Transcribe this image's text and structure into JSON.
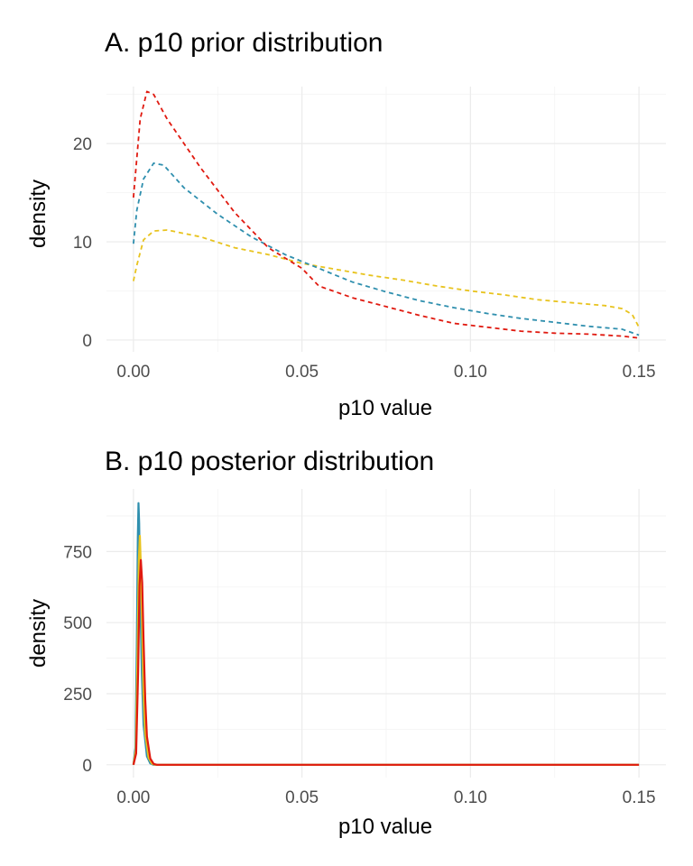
{
  "chart_data": [
    {
      "type": "line",
      "title": "A. p10 prior distribution",
      "xlabel": "p10 value",
      "ylabel": "density",
      "xlim": [
        -0.008,
        0.158
      ],
      "ylim": [
        -1.2,
        25.8
      ],
      "x_ticks": [
        0.0,
        0.05,
        0.1,
        0.15
      ],
      "x_tick_labels": [
        "0.00",
        "0.05",
        "0.10",
        "0.15"
      ],
      "y_ticks": [
        0,
        10,
        20
      ],
      "y_tick_labels": [
        "0",
        "10",
        "20"
      ],
      "grid": true,
      "legend": "none",
      "line_style": "dashed",
      "series": [
        {
          "color": "#E8C31E",
          "points": [
            [
              0.0,
              6.0
            ],
            [
              0.001,
              7.6
            ],
            [
              0.003,
              10.2
            ],
            [
              0.006,
              11.1
            ],
            [
              0.01,
              11.2
            ],
            [
              0.02,
              10.5
            ],
            [
              0.03,
              9.4
            ],
            [
              0.04,
              8.7
            ],
            [
              0.05,
              7.8
            ],
            [
              0.06,
              7.2
            ],
            [
              0.07,
              6.6
            ],
            [
              0.08,
              6.1
            ],
            [
              0.09,
              5.5
            ],
            [
              0.1,
              5.0
            ],
            [
              0.11,
              4.6
            ],
            [
              0.12,
              4.1
            ],
            [
              0.13,
              3.8
            ],
            [
              0.14,
              3.5
            ],
            [
              0.145,
              3.2
            ],
            [
              0.148,
              2.6
            ],
            [
              0.15,
              1.3
            ]
          ]
        },
        {
          "color": "#2F8FAE",
          "points": [
            [
              0.0,
              9.8
            ],
            [
              0.001,
              13.2
            ],
            [
              0.003,
              16.4
            ],
            [
              0.006,
              18.0
            ],
            [
              0.009,
              17.8
            ],
            [
              0.015,
              15.5
            ],
            [
              0.025,
              12.8
            ],
            [
              0.035,
              10.5
            ],
            [
              0.045,
              8.7
            ],
            [
              0.055,
              7.3
            ],
            [
              0.065,
              5.9
            ],
            [
              0.075,
              4.9
            ],
            [
              0.085,
              4.0
            ],
            [
              0.095,
              3.3
            ],
            [
              0.105,
              2.7
            ],
            [
              0.115,
              2.2
            ],
            [
              0.125,
              1.8
            ],
            [
              0.135,
              1.4
            ],
            [
              0.145,
              1.1
            ],
            [
              0.15,
              0.5
            ]
          ]
        },
        {
          "color": "#E01A10",
          "points": [
            [
              0.0,
              14.5
            ],
            [
              0.001,
              18.5
            ],
            [
              0.002,
              22.5
            ],
            [
              0.004,
              25.3
            ],
            [
              0.006,
              25.0
            ],
            [
              0.01,
              22.5
            ],
            [
              0.02,
              17.5
            ],
            [
              0.03,
              13.0
            ],
            [
              0.04,
              9.4
            ],
            [
              0.05,
              7.3
            ],
            [
              0.055,
              5.5
            ],
            [
              0.065,
              4.3
            ],
            [
              0.075,
              3.4
            ],
            [
              0.085,
              2.5
            ],
            [
              0.095,
              1.7
            ],
            [
              0.105,
              1.3
            ],
            [
              0.115,
              0.9
            ],
            [
              0.125,
              0.7
            ],
            [
              0.135,
              0.6
            ],
            [
              0.145,
              0.4
            ],
            [
              0.15,
              0.2
            ]
          ]
        }
      ]
    },
    {
      "type": "line",
      "title": "B. p10 posterior distribution",
      "xlabel": "p10 value",
      "ylabel": "density",
      "xlim": [
        -0.008,
        0.158
      ],
      "ylim": [
        -45,
        970
      ],
      "x_ticks": [
        0.0,
        0.05,
        0.1,
        0.15
      ],
      "x_tick_labels": [
        "0.00",
        "0.05",
        "0.10",
        "0.15"
      ],
      "y_ticks": [
        0,
        250,
        500,
        750
      ],
      "y_tick_labels": [
        "0",
        "250",
        "500",
        "750"
      ],
      "grid": true,
      "legend": "none",
      "line_style": "solid",
      "series": [
        {
          "color": "#2F8FAE",
          "points": [
            [
              0.0,
              0
            ],
            [
              0.0006,
              60
            ],
            [
              0.001,
              420
            ],
            [
              0.0013,
              800
            ],
            [
              0.0015,
              920
            ],
            [
              0.0017,
              850
            ],
            [
              0.002,
              600
            ],
            [
              0.0025,
              320
            ],
            [
              0.003,
              140
            ],
            [
              0.004,
              30
            ],
            [
              0.005,
              5
            ],
            [
              0.006,
              0
            ],
            [
              0.15,
              0
            ]
          ]
        },
        {
          "color": "#E8C31E",
          "points": [
            [
              0.0,
              0
            ],
            [
              0.0007,
              50
            ],
            [
              0.0012,
              380
            ],
            [
              0.0016,
              720
            ],
            [
              0.0019,
              805
            ],
            [
              0.0022,
              700
            ],
            [
              0.0026,
              470
            ],
            [
              0.003,
              250
            ],
            [
              0.0035,
              110
            ],
            [
              0.0045,
              25
            ],
            [
              0.0055,
              4
            ],
            [
              0.0065,
              0
            ],
            [
              0.15,
              0
            ]
          ]
        },
        {
          "color": "#E01A10",
          "points": [
            [
              0.0,
              0
            ],
            [
              0.0008,
              40
            ],
            [
              0.0014,
              330
            ],
            [
              0.0018,
              630
            ],
            [
              0.0022,
              720
            ],
            [
              0.0026,
              640
            ],
            [
              0.003,
              440
            ],
            [
              0.0035,
              230
            ],
            [
              0.004,
              100
            ],
            [
              0.005,
              22
            ],
            [
              0.006,
              3
            ],
            [
              0.007,
              0
            ],
            [
              0.15,
              0
            ]
          ]
        }
      ]
    }
  ]
}
